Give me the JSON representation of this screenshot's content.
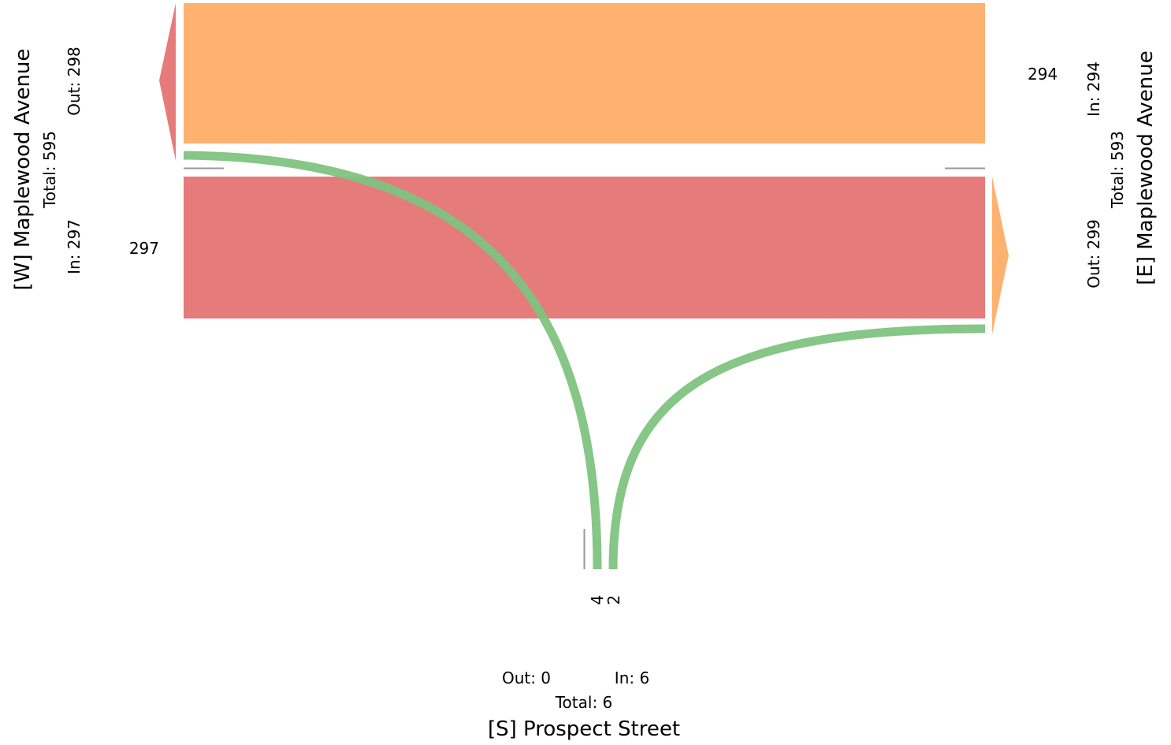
{
  "colors": {
    "west_movements": "#e57b7b",
    "east_movements": "#ffb170",
    "turn_movements": "#7fc37f",
    "divider": "#999999"
  },
  "approaches": {
    "west": {
      "name": "[W] Maplewood Avenue",
      "total": "Total: 595",
      "in": "In: 297",
      "out": "Out: 298"
    },
    "east": {
      "name": "[E] Maplewood Avenue",
      "total": "Total: 593",
      "in": "In: 294",
      "out": "Out: 299"
    },
    "south": {
      "name": "[S] Prospect Street",
      "total": "Total: 6",
      "in": "In: 6",
      "out": "Out: 0"
    }
  },
  "flows": [
    {
      "id": "east-to-west-through",
      "from": "east",
      "to": "west",
      "value": 294,
      "label": "294",
      "color": "#ffb170"
    },
    {
      "id": "west-to-east-through",
      "from": "west",
      "to": "east",
      "value": 297,
      "label": "297",
      "color": "#e57b7b"
    },
    {
      "id": "south-to-west-turn",
      "from": "south",
      "to": "west",
      "value": 4,
      "label": "4",
      "color": "#7fc37f"
    },
    {
      "id": "south-to-east-turn",
      "from": "south",
      "to": "east",
      "value": 2,
      "label": "2",
      "color": "#7fc37f"
    }
  ]
}
